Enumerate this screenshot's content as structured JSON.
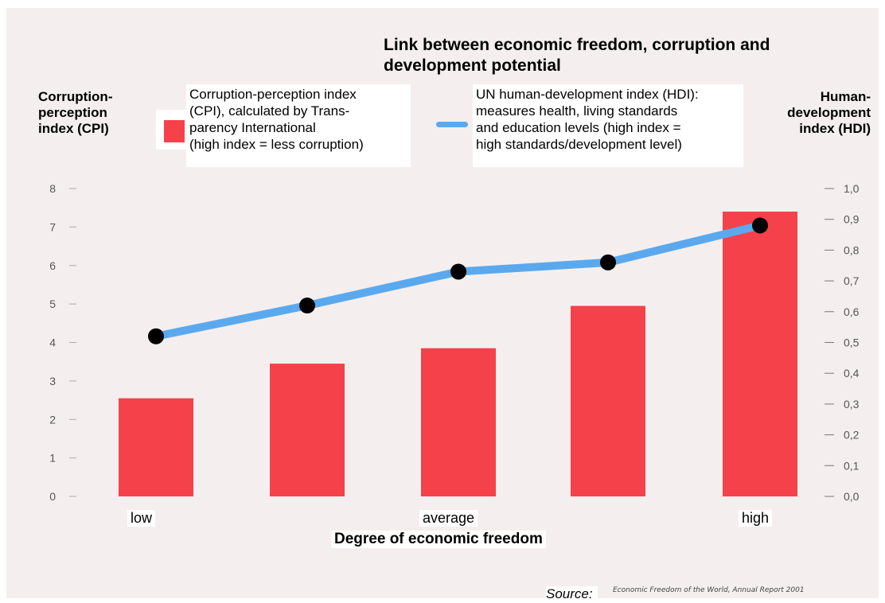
{
  "chart_data": {
    "type": "bar",
    "title": [
      "Link between economic freedom, corruption and",
      "development potential"
    ],
    "categories": [
      "1",
      "2",
      "3",
      "4",
      "5"
    ],
    "category_labels_shown": [
      "low",
      "",
      "average",
      "",
      "high"
    ],
    "xlabel": "Degree of economic freedom",
    "ylabel_left": [
      "Corruption-",
      "perception",
      "index (CPI)"
    ],
    "ylabel_right": [
      "Human-",
      "development",
      "index (HDI)"
    ],
    "ylim_left": [
      0,
      8
    ],
    "ylim_right": [
      0,
      1.0
    ],
    "yticks_left": [
      "0",
      "1",
      "2",
      "3",
      "4",
      "5",
      "6",
      "7",
      "8"
    ],
    "yticks_right": [
      "0,0",
      "0,1",
      "0,2",
      "0,3",
      "0,4",
      "0,5",
      "0,6",
      "0,7",
      "0,8",
      "0,9",
      "1,0"
    ],
    "series": [
      {
        "kind": "bar",
        "axis": "left",
        "color": "#f5414a",
        "values": [
          2.55,
          3.45,
          3.85,
          4.95,
          7.4
        ],
        "legend": [
          "Corruption-perception index",
          "(CPI), calculated by Trans-",
          "parency International",
          "(high index = less corruption)"
        ]
      },
      {
        "kind": "line",
        "axis": "right",
        "color": "#5aa9ee",
        "marker_color": "#000000",
        "values": [
          0.52,
          0.62,
          0.73,
          0.76,
          0.88
        ],
        "legend": [
          "UN human-development index (HDI):",
          "measures health, living standards",
          "and education levels (high index =",
          "high standards/development level)"
        ]
      }
    ],
    "grid": false,
    "source_label": "Source:",
    "source_text": "Economic Freedom of the World, Annual Report 2001"
  }
}
